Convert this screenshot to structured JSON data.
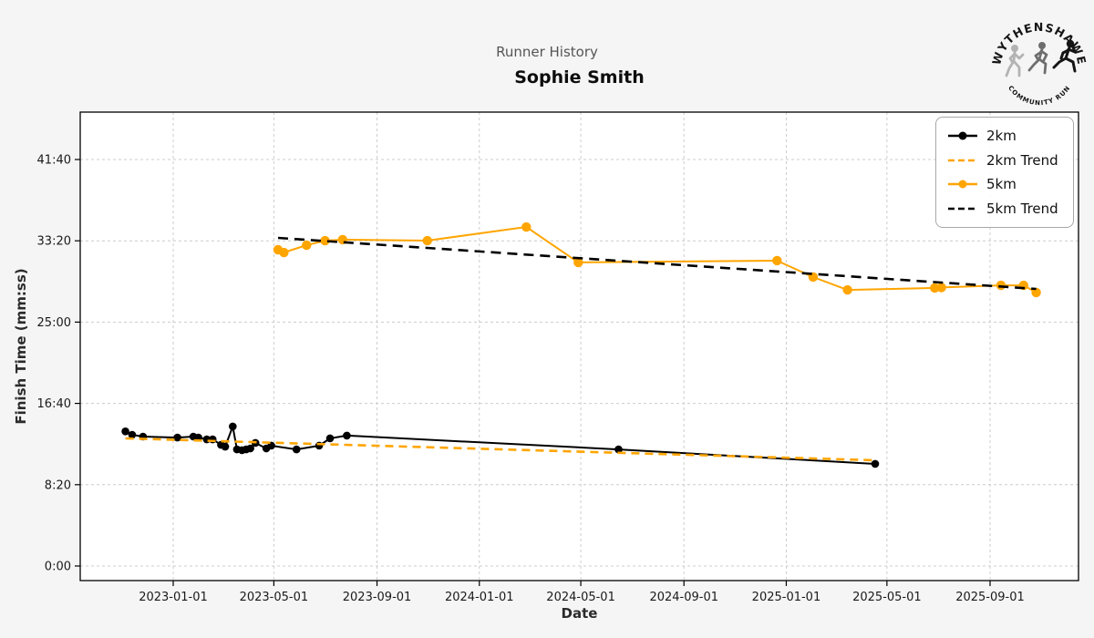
{
  "header": {
    "suptitle": "Runner History",
    "title": "Sophie Smith"
  },
  "logo": {
    "top_text": "WYTHENSHAWE",
    "bottom_text": "COMMUNITY RUN",
    "runner_colors": [
      "#b3b3b3",
      "#6e6e6e",
      "#151515"
    ]
  },
  "chart_data": {
    "type": "line",
    "title": "Runner History",
    "subtitle": "Sophie Smith",
    "xlabel": "Date",
    "ylabel": "Finish Time (mm:ss)",
    "grid": true,
    "background": {
      "figure": "#f5f5f5",
      "axes": "#ffffff",
      "grid": "#cccccc"
    },
    "x_ticks": [
      "2023-01-01",
      "2023-05-01",
      "2023-09-01",
      "2024-01-01",
      "2024-05-01",
      "2024-09-01",
      "2025-01-01",
      "2025-05-01",
      "2025-09-01"
    ],
    "y_tick_labels": [
      "0:00",
      "8:20",
      "16:40",
      "25:00",
      "33:20",
      "41:40"
    ],
    "y_tick_seconds": [
      0,
      500,
      1000,
      1500,
      2000,
      2500
    ],
    "xlim": [
      "2022-09-12",
      "2025-12-16"
    ],
    "ylim_seconds": [
      -90,
      2790
    ],
    "legend": {
      "position": "upper right",
      "entries": [
        "2km",
        "2km Trend",
        "5km",
        "5km Trend"
      ]
    },
    "series": [
      {
        "name": "2km",
        "color": "#000000",
        "line": "solid",
        "marker": "circle",
        "points": [
          [
            "2022-11-05",
            "13:48"
          ],
          [
            "2022-11-13",
            "13:27"
          ],
          [
            "2022-11-26",
            "13:16"
          ],
          [
            "2023-01-06",
            "13:10"
          ],
          [
            "2023-01-25",
            "13:16"
          ],
          [
            "2023-01-31",
            "13:10"
          ],
          [
            "2023-02-10",
            "12:59"
          ],
          [
            "2023-02-17",
            "12:59"
          ],
          [
            "2023-02-27",
            "12:25"
          ],
          [
            "2023-03-04",
            "12:14"
          ],
          [
            "2023-03-13",
            "14:18"
          ],
          [
            "2023-03-18",
            "11:57"
          ],
          [
            "2023-03-24",
            "11:52"
          ],
          [
            "2023-03-29",
            "11:57"
          ],
          [
            "2023-04-03",
            "12:03"
          ],
          [
            "2023-04-09",
            "12:37"
          ],
          [
            "2023-04-22",
            "12:03"
          ],
          [
            "2023-04-28",
            "12:20"
          ],
          [
            "2023-05-28",
            "11:57"
          ],
          [
            "2023-06-24",
            "12:20"
          ],
          [
            "2023-07-07",
            "13:05"
          ],
          [
            "2023-07-27",
            "13:22"
          ],
          [
            "2024-06-15",
            "11:57"
          ],
          [
            "2025-04-17",
            "10:28"
          ]
        ]
      },
      {
        "name": "2km Trend",
        "color": "#FFA500",
        "line": "dashed",
        "marker": "none",
        "points": [
          [
            "2022-11-05",
            "13:05"
          ],
          [
            "2025-04-17",
            "10:50"
          ]
        ]
      },
      {
        "name": "5km",
        "color": "#FFA500",
        "line": "solid",
        "marker": "circle",
        "points": [
          [
            "2023-05-06",
            "32:25"
          ],
          [
            "2023-05-13",
            "32:08"
          ],
          [
            "2023-06-09",
            "32:53"
          ],
          [
            "2023-07-01",
            "33:21"
          ],
          [
            "2023-07-22",
            "33:27"
          ],
          [
            "2023-10-31",
            "33:21"
          ],
          [
            "2024-02-26",
            "34:45"
          ],
          [
            "2024-04-28",
            "31:07"
          ],
          [
            "2024-12-21",
            "31:18"
          ],
          [
            "2025-02-02",
            "29:37"
          ],
          [
            "2025-03-15",
            "28:18"
          ],
          [
            "2025-06-27",
            "28:30"
          ],
          [
            "2025-07-05",
            "28:33"
          ],
          [
            "2025-09-14",
            "28:46"
          ],
          [
            "2025-10-11",
            "28:46"
          ],
          [
            "2025-10-26",
            "28:02"
          ]
        ]
      },
      {
        "name": "5km Trend",
        "color": "#000000",
        "line": "dashed",
        "marker": "none",
        "points": [
          [
            "2023-05-06",
            "33:38"
          ],
          [
            "2025-10-26",
            "28:24"
          ]
        ]
      }
    ]
  }
}
